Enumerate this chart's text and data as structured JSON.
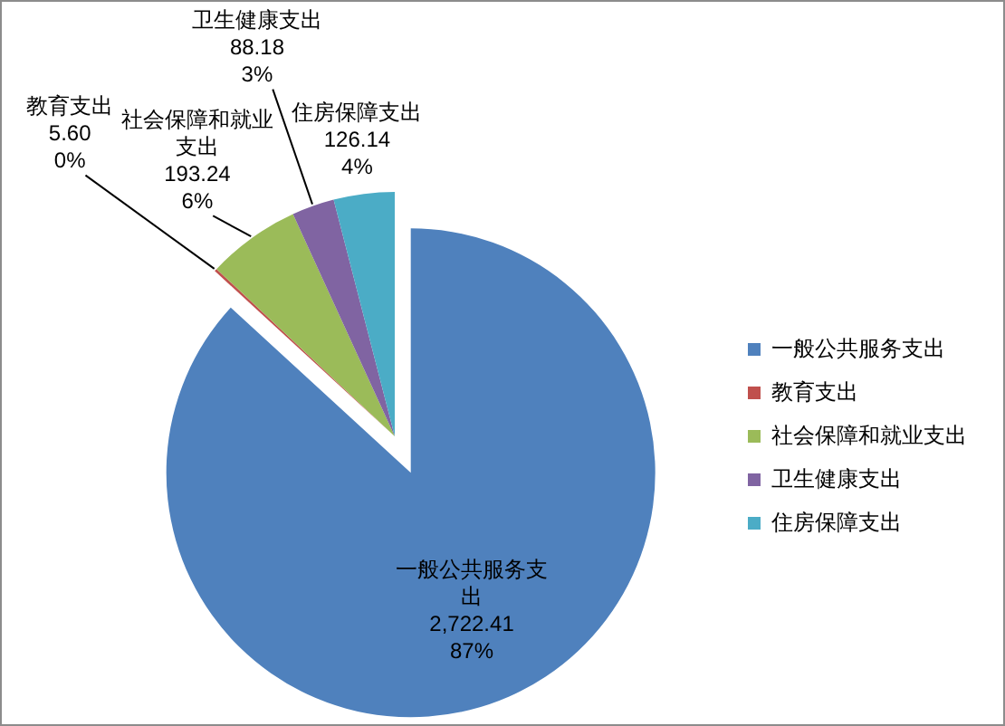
{
  "chart_data": {
    "type": "pie",
    "categories": [
      "一般公共服务支出",
      "教育支出",
      "社会保障和就业支出",
      "卫生健康支出",
      "住房保障支出"
    ],
    "values": [
      2722.41,
      5.6,
      193.24,
      88.18,
      126.14
    ],
    "colors": [
      "#4f81bd",
      "#c0504d",
      "#9bbb59",
      "#8064a2",
      "#4bacc6"
    ],
    "value_labels": [
      "2,722.41\n87%",
      "5.60\n0%",
      "193.24\n6%",
      "88.18\n3%",
      "126.14\n4%"
    ],
    "legend": "right"
  }
}
